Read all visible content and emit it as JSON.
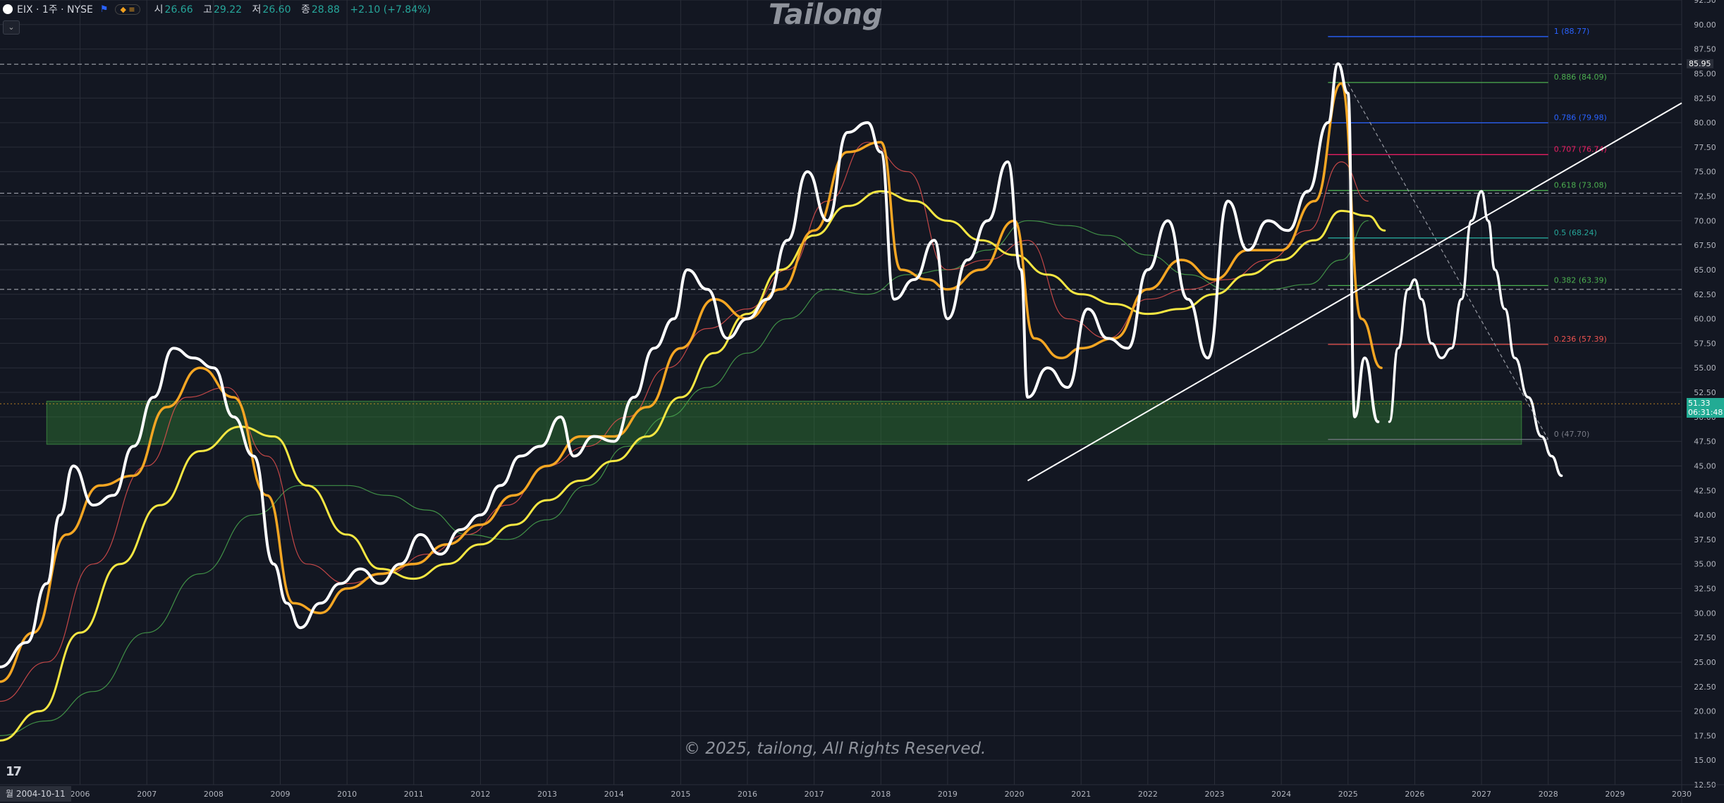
{
  "header": {
    "symbol": "EIX · 1주 · NYSE",
    "open_label": "시",
    "open_value": "26.66",
    "high_label": "고",
    "high_value": "29.22",
    "low_label": "저",
    "low_value": "26.60",
    "close_label": "종",
    "close_value": "28.88",
    "change": "+2.10 (+7.84%)"
  },
  "watermark": "Tailong",
  "copyright": "© 2025, tailong, All Rights Reserved.",
  "tv_logo": "17",
  "start_date": "월 2004-10-11",
  "last_price": "51.33",
  "countdown": "06:31:48",
  "high_label": "85.95",
  "colors": {
    "background": "#131722",
    "grid": "#2a2e39",
    "price": "#ffffff",
    "ema_fast": "#f5a623",
    "sma_mid": "#f5e642",
    "ma_slow": "#4caf50",
    "ma_red": "#ef5350",
    "zone": "#2e7d32"
  },
  "chart_data": {
    "type": "line",
    "title": "",
    "ylim": [
      12.5,
      92.5
    ],
    "xlim": [
      2004.8,
      2030.0
    ],
    "y_ticks": [
      "12.50",
      "15.00",
      "17.50",
      "20.00",
      "22.50",
      "25.00",
      "27.50",
      "30.00",
      "32.50",
      "35.00",
      "37.50",
      "40.00",
      "42.50",
      "45.00",
      "47.50",
      "50.00",
      "52.50",
      "55.00",
      "57.50",
      "60.00",
      "62.50",
      "65.00",
      "67.50",
      "70.00",
      "72.50",
      "75.00",
      "77.50",
      "80.00",
      "82.50",
      "85.00",
      "87.50",
      "90.00",
      "92.50"
    ],
    "x_ticks": [
      "2006",
      "2007",
      "2008",
      "2009",
      "2010",
      "2011",
      "2012",
      "2013",
      "2014",
      "2015",
      "2016",
      "2017",
      "2018",
      "2019",
      "2020",
      "2021",
      "2022",
      "2023",
      "2024",
      "2025",
      "2026",
      "2027",
      "2028",
      "2029",
      "2030"
    ],
    "series": [
      {
        "key": "price",
        "x": [
          2004.8,
          2005.2,
          2005.5,
          2005.7,
          2005.9,
          2006.2,
          2006.5,
          2006.8,
          2007.1,
          2007.4,
          2007.7,
          2008.0,
          2008.3,
          2008.6,
          2008.9,
          2009.1,
          2009.3,
          2009.6,
          2009.9,
          2010.2,
          2010.5,
          2010.8,
          2011.1,
          2011.4,
          2011.7,
          2012.0,
          2012.3,
          2012.6,
          2012.9,
          2013.2,
          2013.4,
          2013.7,
          2014.0,
          2014.3,
          2014.6,
          2014.9,
          2015.1,
          2015.4,
          2015.7,
          2016.0,
          2016.3,
          2016.6,
          2016.9,
          2017.2,
          2017.5,
          2017.8,
          2018.0,
          2018.2,
          2018.5,
          2018.8,
          2019.0,
          2019.3,
          2019.6,
          2019.9,
          2020.1,
          2020.2,
          2020.5,
          2020.8,
          2021.1,
          2021.4,
          2021.7,
          2022.0,
          2022.3,
          2022.6,
          2022.9,
          2023.2,
          2023.5,
          2023.8,
          2024.1,
          2024.4,
          2024.7,
          2024.85,
          2025.0,
          2025.1,
          2025.25,
          2025.45
        ],
        "y": [
          24.5,
          27.0,
          33.0,
          40.0,
          45.0,
          41.0,
          42.0,
          47.0,
          52.0,
          57.0,
          56.0,
          55.0,
          50.0,
          46.0,
          35.0,
          31.0,
          28.5,
          31.0,
          33.0,
          34.5,
          33.0,
          35.0,
          38.0,
          36.0,
          38.5,
          40.0,
          43.0,
          46.0,
          47.0,
          50.0,
          46.0,
          48.0,
          47.5,
          52.0,
          57.0,
          60.0,
          65.0,
          63.0,
          58.0,
          60.0,
          62.0,
          68.0,
          75.0,
          70.0,
          79.0,
          80.0,
          77.0,
          62.0,
          64.0,
          68.0,
          60.0,
          66.0,
          70.0,
          76.0,
          65.0,
          52.0,
          55.0,
          53.0,
          61.0,
          58.0,
          57.0,
          65.0,
          70.0,
          62.0,
          56.0,
          72.0,
          67.0,
          70.0,
          69.0,
          73.0,
          80.0,
          86.0,
          83.0,
          50.0,
          56.0,
          49.5
        ]
      },
      {
        "key": "ema_fast",
        "x": [
          2004.8,
          2005.3,
          2005.8,
          2006.3,
          2006.8,
          2007.3,
          2007.8,
          2008.3,
          2008.8,
          2009.2,
          2009.6,
          2010.0,
          2010.5,
          2011.0,
          2011.5,
          2012.0,
          2012.5,
          2013.0,
          2013.5,
          2014.0,
          2014.5,
          2015.0,
          2015.5,
          2016.0,
          2016.5,
          2017.0,
          2017.5,
          2018.0,
          2018.3,
          2018.7,
          2019.0,
          2019.5,
          2020.0,
          2020.3,
          2020.7,
          2021.0,
          2021.5,
          2022.0,
          2022.5,
          2023.0,
          2023.5,
          2024.0,
          2024.5,
          2024.9,
          2025.2,
          2025.5
        ],
        "y": [
          23.0,
          28.0,
          38.0,
          43.0,
          44.0,
          51.0,
          55.0,
          52.0,
          42.0,
          31.0,
          30.0,
          32.5,
          34.0,
          35.0,
          37.0,
          39.0,
          42.0,
          45.0,
          48.0,
          48.0,
          51.0,
          57.0,
          62.0,
          60.0,
          63.0,
          69.0,
          77.0,
          78.0,
          65.0,
          64.0,
          63.0,
          65.0,
          70.0,
          58.0,
          56.0,
          57.0,
          58.0,
          63.0,
          66.0,
          64.0,
          67.0,
          67.0,
          72.0,
          84.0,
          60.0,
          55.0
        ]
      },
      {
        "key": "sma_mid",
        "x": [
          2004.8,
          2005.4,
          2006.0,
          2006.6,
          2007.2,
          2007.8,
          2008.4,
          2008.9,
          2009.4,
          2010.0,
          2010.5,
          2011.0,
          2011.5,
          2012.0,
          2012.5,
          2013.0,
          2013.5,
          2014.0,
          2014.5,
          2015.0,
          2015.5,
          2016.0,
          2016.5,
          2017.0,
          2017.5,
          2018.0,
          2018.5,
          2019.0,
          2019.5,
          2020.0,
          2020.5,
          2021.0,
          2021.5,
          2022.0,
          2022.5,
          2023.0,
          2023.5,
          2024.0,
          2024.5,
          2024.9,
          2025.3,
          2025.55
        ],
        "y": [
          17.0,
          20.0,
          28.0,
          35.0,
          41.0,
          46.5,
          49.0,
          48.0,
          43.0,
          38.0,
          34.5,
          33.5,
          35.0,
          37.0,
          39.0,
          41.5,
          43.5,
          45.5,
          48.0,
          52.0,
          56.5,
          60.5,
          65.0,
          68.5,
          71.5,
          73.0,
          72.0,
          70.0,
          68.0,
          66.5,
          64.5,
          62.5,
          61.5,
          60.5,
          61.0,
          62.5,
          64.5,
          66.0,
          68.0,
          71.0,
          70.5,
          69.0
        ]
      },
      {
        "key": "ma_slow",
        "x": [
          2004.8,
          2005.5,
          2006.2,
          2007.0,
          2007.8,
          2008.6,
          2009.3,
          2010.0,
          2010.6,
          2011.2,
          2011.8,
          2012.4,
          2013.0,
          2013.6,
          2014.2,
          2014.8,
          2015.4,
          2016.0,
          2016.6,
          2017.2,
          2017.8,
          2018.4,
          2019.0,
          2019.6,
          2020.2,
          2020.8,
          2021.4,
          2022.0,
          2022.6,
          2023.2,
          2023.8,
          2024.4,
          2024.9,
          2025.3
        ],
        "y": [
          17.5,
          19.0,
          22.0,
          28.0,
          34.0,
          40.0,
          43.0,
          43.0,
          42.0,
          40.5,
          38.0,
          37.5,
          39.5,
          43.0,
          47.0,
          50.0,
          53.0,
          56.5,
          60.0,
          63.0,
          62.5,
          64.5,
          65.0,
          67.0,
          70.0,
          69.5,
          68.5,
          66.5,
          64.5,
          63.0,
          63.0,
          63.5,
          66.0,
          70.0
        ]
      },
      {
        "key": "ma_red",
        "x": [
          2004.8,
          2005.5,
          2006.2,
          2007.0,
          2007.6,
          2008.2,
          2008.8,
          2009.4,
          2010.0,
          2010.6,
          2011.2,
          2011.8,
          2012.4,
          2013.0,
          2013.6,
          2014.2,
          2014.8,
          2015.4,
          2016.0,
          2016.6,
          2017.2,
          2017.8,
          2018.4,
          2019.0,
          2019.6,
          2020.2,
          2020.8,
          2021.4,
          2022.0,
          2022.6,
          2023.2,
          2023.8,
          2024.4,
          2024.9,
          2025.3
        ],
        "y": [
          21.0,
          25.0,
          35.0,
          45.0,
          52.0,
          53.0,
          46.0,
          35.0,
          33.0,
          34.0,
          36.0,
          38.0,
          41.0,
          45.0,
          47.0,
          50.0,
          55.0,
          59.0,
          61.0,
          65.0,
          72.0,
          78.0,
          75.0,
          65.0,
          66.0,
          68.0,
          60.0,
          58.0,
          62.0,
          63.0,
          64.0,
          66.0,
          69.0,
          76.0,
          72.0
        ]
      },
      {
        "key": "projection",
        "x": [
          2025.62,
          2025.75,
          2025.9,
          2026.0,
          2026.1,
          2026.25,
          2026.4,
          2026.55,
          2026.7,
          2026.85,
          2027.0,
          2027.1,
          2027.2,
          2027.35,
          2027.5,
          2027.7,
          2027.9,
          2028.05,
          2028.2
        ],
        "y": [
          49.5,
          57.0,
          63.0,
          64.0,
          62.0,
          57.5,
          56.0,
          57.0,
          62.0,
          70.0,
          73.0,
          70.0,
          65.0,
          61.0,
          56.0,
          52.0,
          48.0,
          46.0,
          44.0
        ]
      }
    ],
    "trendline": {
      "x": [
        2020.2,
        2030.0
      ],
      "y": [
        43.5,
        82.0
      ]
    },
    "dashed_line": {
      "x": [
        2025.0,
        2028.0
      ],
      "y": [
        84.0,
        47.7
      ]
    },
    "horizontal_levels": [
      85.95,
      72.8,
      67.6,
      63.0
    ],
    "support_zone": {
      "x": [
        2005.5,
        2027.6
      ],
      "y": [
        47.2,
        51.6
      ]
    },
    "fib_x": [
      2024.7,
      2028.0
    ],
    "fib_levels": [
      {
        "label": "1 (88.77)",
        "value": 88.77,
        "color": "#2962ff"
      },
      {
        "label": "0.886 (84.09)",
        "value": 84.09,
        "color": "#4caf50"
      },
      {
        "label": "0.786 (79.98)",
        "value": 79.98,
        "color": "#2962ff"
      },
      {
        "label": "0.707 (76.74)",
        "value": 76.74,
        "color": "#e91e63"
      },
      {
        "label": "0.618 (73.08)",
        "value": 73.08,
        "color": "#4caf50"
      },
      {
        "label": "0.5 (68.24)",
        "value": 68.24,
        "color": "#26a69a"
      },
      {
        "label": "0.382 (63.39)",
        "value": 63.39,
        "color": "#4caf50"
      },
      {
        "label": "0.236 (57.39)",
        "value": 57.39,
        "color": "#ef5350"
      },
      {
        "label": "0 (47.70)",
        "value": 47.7,
        "color": "#787b86"
      }
    ]
  }
}
